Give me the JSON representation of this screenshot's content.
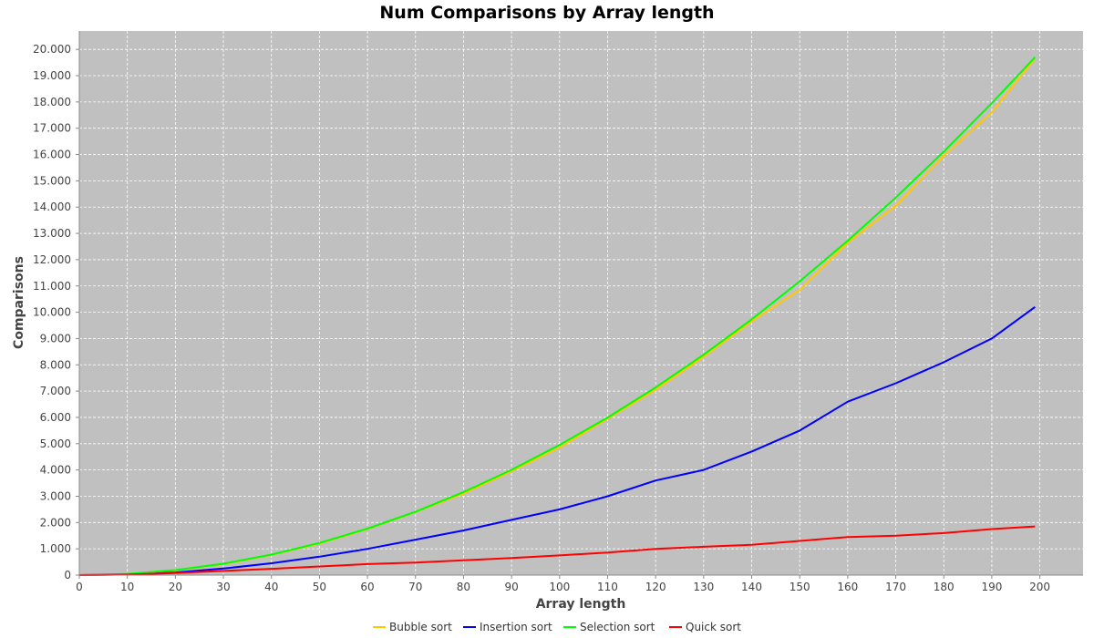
{
  "chart_data": {
    "type": "line",
    "title": "Num Comparisons by Array length",
    "xlabel": "Array length",
    "ylabel": "Comparisons",
    "xlim": [
      0,
      209
    ],
    "ylim": [
      0,
      20700
    ],
    "xticks": [
      0,
      10,
      20,
      30,
      40,
      50,
      60,
      70,
      80,
      90,
      100,
      110,
      120,
      130,
      140,
      150,
      160,
      170,
      180,
      190,
      200
    ],
    "yticks": [
      0,
      1000,
      2000,
      3000,
      4000,
      5000,
      6000,
      7000,
      8000,
      9000,
      10000,
      11000,
      12000,
      13000,
      14000,
      15000,
      16000,
      17000,
      18000,
      19000,
      20000
    ],
    "ytick_labels": [
      "0",
      "1.000",
      "2.000",
      "3.000",
      "4.000",
      "5.000",
      "6.000",
      "7.000",
      "8.000",
      "9.000",
      "10.000",
      "11.000",
      "12.000",
      "13.000",
      "14.000",
      "15.000",
      "16.000",
      "17.000",
      "18.000",
      "19.000",
      "20.000"
    ],
    "grid": true,
    "plot_background": "#c0c0c0",
    "legend_position": "bottom",
    "x": [
      0,
      10,
      20,
      30,
      40,
      50,
      60,
      70,
      80,
      90,
      100,
      110,
      120,
      130,
      140,
      150,
      160,
      170,
      180,
      190,
      199
    ],
    "series": [
      {
        "name": "Bubble sort",
        "color": "#ffc800",
        "values": [
          0,
          40,
          180,
          420,
          770,
          1200,
          1750,
          2400,
          3100,
          3950,
          4850,
          5950,
          7050,
          8300,
          9650,
          10850,
          12650,
          14050,
          15950,
          17600,
          19650
        ]
      },
      {
        "name": "Insertion sort",
        "color": "#0000ff",
        "values": [
          0,
          20,
          100,
          250,
          450,
          700,
          1000,
          1350,
          1700,
          2100,
          2500,
          3000,
          3600,
          4000,
          4700,
          5500,
          6600,
          7300,
          8100,
          9000,
          10200
        ]
      },
      {
        "name": "Selection sort",
        "color": "#00ff00",
        "values": [
          0,
          45,
          190,
          435,
          780,
          1225,
          1770,
          2415,
          3160,
          4005,
          4950,
          5995,
          7140,
          8385,
          9730,
          11175,
          12720,
          14365,
          16110,
          17955,
          19701
        ]
      },
      {
        "name": "Quick sort",
        "color": "#ff0000",
        "values": [
          0,
          20,
          80,
          160,
          240,
          330,
          420,
          480,
          560,
          650,
          750,
          860,
          1000,
          1080,
          1150,
          1300,
          1450,
          1500,
          1600,
          1750,
          1850
        ]
      }
    ]
  }
}
